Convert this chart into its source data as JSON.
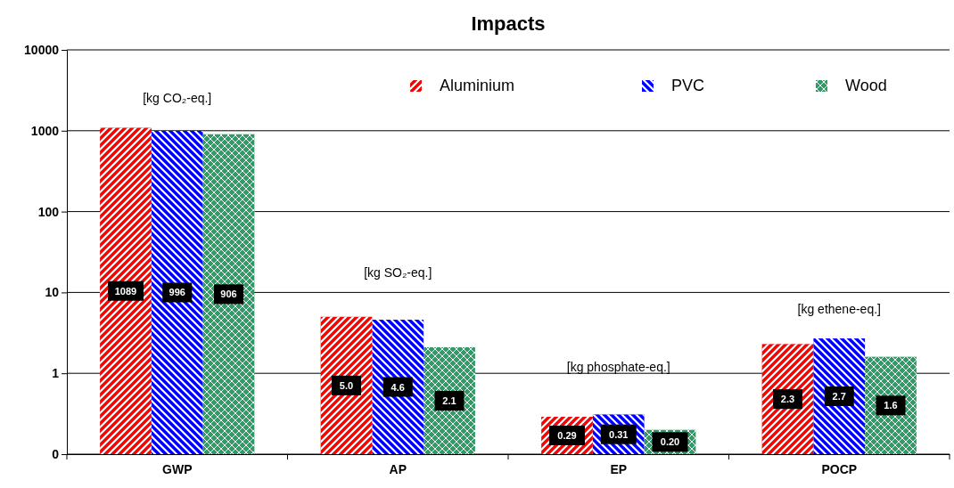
{
  "chart_data": {
    "type": "bar",
    "title": "Impacts",
    "categories": [
      "GWP",
      "AP",
      "EP",
      "POCP"
    ],
    "series": [
      {
        "name": "Aluminium",
        "color": "#ff0000",
        "values": [
          1089,
          5.0,
          0.29,
          2.3
        ],
        "value_labels": [
          "1089",
          "5.0",
          "0.29",
          "2.3"
        ]
      },
      {
        "name": "PVC",
        "color": "#0000ff",
        "values": [
          996,
          4.6,
          0.31,
          2.7
        ],
        "value_labels": [
          "996",
          "4.6",
          "0.31",
          "2.7"
        ]
      },
      {
        "name": "Wood",
        "color": "#339966",
        "values": [
          906,
          2.1,
          0.2,
          1.6
        ],
        "value_labels": [
          "906",
          "2.1",
          "0.20",
          "1.6"
        ]
      }
    ],
    "log": "y",
    "ylim": [
      0.1,
      10000
    ],
    "yticks": [
      {
        "value": 0.1,
        "label": "0"
      },
      1,
      10,
      100,
      1000,
      10000
    ],
    "grid": "y",
    "legend": "top right",
    "annotations": [
      "[kg CO₂-eq.]",
      "[kg SO₂-eq.]",
      "[kg phosphate-eq.]",
      "[kg ethene-eq.]"
    ]
  }
}
